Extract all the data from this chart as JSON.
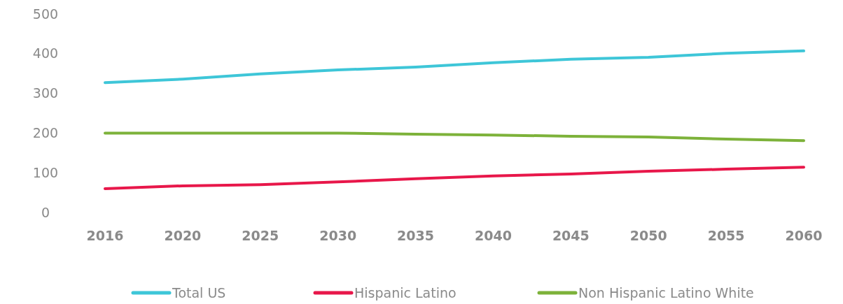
{
  "chart_data": {
    "type": "line",
    "categories": [
      "2016",
      "2020",
      "2025",
      "2030",
      "2035",
      "2040",
      "2045",
      "2050",
      "2055",
      "2060"
    ],
    "series": [
      {
        "name": "Total US",
        "color": "#3ec6d8",
        "values": [
          327,
          336,
          349,
          359,
          366,
          377,
          386,
          391,
          401,
          407
        ]
      },
      {
        "name": "Hispanic Latino",
        "color": "#e8174a",
        "values": [
          60,
          67,
          70,
          77,
          85,
          92,
          97,
          104,
          109,
          114
        ]
      },
      {
        "name": "Non Hispanic Latino White",
        "color": "#7db23a",
        "values": [
          200,
          200,
          200,
          200,
          197,
          195,
          192,
          190,
          185,
          181
        ]
      }
    ],
    "ylim": [
      0,
      500
    ],
    "yticks": [
      0,
      100,
      200,
      300,
      400,
      500
    ],
    "grid": false,
    "legend": "bottom",
    "marker": "none",
    "line_style": "solid"
  }
}
